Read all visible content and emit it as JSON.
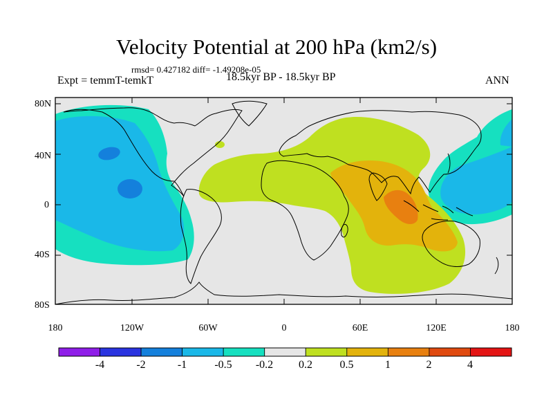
{
  "title": "Velocity Potential at 200 hPa (km2/s)",
  "stats": "rmsd= 0.427182 diff= -1.49208e-05",
  "experiment": "Expt = temmT-temkT",
  "period": "18.5kyr BP - 18.5kyr BP",
  "season": "ANN",
  "lat_labels": [
    "80N",
    "40N",
    "0",
    "40S",
    "80S"
  ],
  "lon_labels": [
    "180",
    "120W",
    "60W",
    "0",
    "60E",
    "120E",
    "180"
  ],
  "colorbar": {
    "colors": [
      "#8f1ee8",
      "#2a34e0",
      "#1480dc",
      "#1ab8e8",
      "#16e0c0",
      "#e6e6e6",
      "#bfe020",
      "#e3b30c",
      "#e88010",
      "#e04a10",
      "#e41414"
    ],
    "labels": [
      "-4",
      "-2",
      "-1",
      "-0.5",
      "-0.2",
      "0.2",
      "0.5",
      "1",
      "2",
      "4"
    ]
  }
}
